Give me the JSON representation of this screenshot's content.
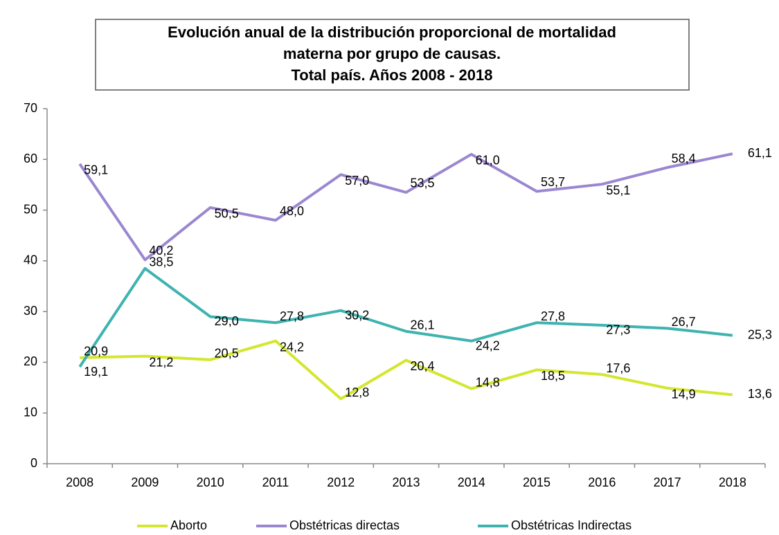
{
  "chart_data": {
    "type": "line",
    "title": [
      "Evolución anual de la distribución proporcional de mortalidad",
      "materna por grupo de causas.",
      "Total país. Años 2008 - 2018"
    ],
    "categories": [
      "2008",
      "2009",
      "2010",
      "2011",
      "2012",
      "2013",
      "2014",
      "2015",
      "2016",
      "2017",
      "2018"
    ],
    "series": [
      {
        "name": "Aborto",
        "color": "#d4e62f",
        "values": [
          20.9,
          21.2,
          20.5,
          24.2,
          12.8,
          20.4,
          14.8,
          18.5,
          17.6,
          14.9,
          13.6
        ],
        "value_labels": [
          "20,9",
          "21,2",
          "20,5",
          "24,2",
          "12,8",
          "20,4",
          "14,8",
          "18,5",
          "17,6",
          "14,9",
          "13,6"
        ]
      },
      {
        "name": "Obstétricas directas",
        "color": "#9b87d0",
        "values": [
          59.1,
          40.2,
          50.5,
          48.0,
          57.0,
          53.5,
          61.0,
          53.7,
          55.1,
          58.4,
          61.1
        ],
        "value_labels": [
          "59,1",
          "40,2",
          "50,5",
          "48,0",
          "57,0",
          "53,5",
          "61,0",
          "53,7",
          "55,1",
          "58,4",
          "61,1"
        ]
      },
      {
        "name": "Obstétricas Indirectas",
        "color": "#3fb3b0",
        "values": [
          19.1,
          38.5,
          29.0,
          27.8,
          30.2,
          26.1,
          24.2,
          27.8,
          27.3,
          26.7,
          25.3
        ],
        "value_labels": [
          "19,1",
          "38,5",
          "29,0",
          "27,8",
          "30,2",
          "26,1",
          "24,2",
          "27,8",
          "27,3",
          "26,7",
          "25,3"
        ]
      }
    ],
    "ylim": [
      0,
      70
    ],
    "yticks": [
      0,
      10,
      20,
      30,
      40,
      50,
      60,
      70
    ],
    "grid": false
  }
}
